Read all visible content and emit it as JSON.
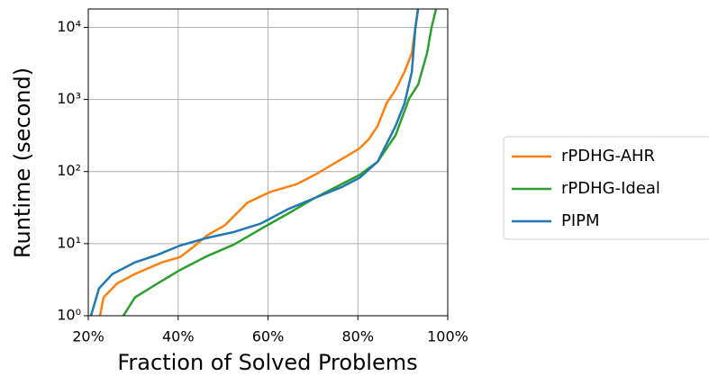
{
  "chart_data": {
    "type": "line",
    "xlabel": "Fraction of Solved Problems",
    "ylabel": "Runtime (second)",
    "xlim": [
      20,
      100
    ],
    "xticks": [
      {
        "value": 20,
        "label": "20%"
      },
      {
        "value": 40,
        "label": "40%"
      },
      {
        "value": 60,
        "label": "60%"
      },
      {
        "value": 80,
        "label": "80%"
      },
      {
        "value": 100,
        "label": "100%"
      }
    ],
    "ylim": [
      1,
      18000
    ],
    "yticks": [
      {
        "value": 1,
        "label": "10⁰"
      },
      {
        "value": 10,
        "label": "10¹"
      },
      {
        "value": 100,
        "label": "10²"
      },
      {
        "value": 1000,
        "label": "10³"
      },
      {
        "value": 10000,
        "label": "10⁴"
      }
    ],
    "log_y": true,
    "grid": true,
    "legend": "right",
    "series": [
      {
        "name": "rPDHG-AHR",
        "color": "#ff7f0e",
        "x": [
          22.6,
          23.4,
          26.4,
          30.4,
          36.4,
          40.4,
          43.4,
          46.4,
          50.4,
          55.4,
          60.4,
          66.4,
          70.4,
          75.4,
          80.4,
          82.4,
          84.4,
          86.4,
          88.4,
          90.4,
          92,
          93.4
        ],
        "values": [
          1,
          1.8,
          2.8,
          3.8,
          5.5,
          6.5,
          9,
          13,
          18,
          37,
          52,
          67,
          90,
          137,
          210,
          280,
          430,
          890,
          1370,
          2440,
          4400,
          18000
        ]
      },
      {
        "name": "rPDHG-Ideal",
        "color": "#2ca02c",
        "x": [
          27.8,
          30.4,
          35.4,
          40.4,
          46.4,
          52.4,
          58.4,
          64.4,
          70.4,
          76.4,
          80.4,
          84.4,
          88.4,
          91.4,
          93.4,
          95.4,
          96.4,
          97.4
        ],
        "values": [
          1,
          1.8,
          2.8,
          4.3,
          6.7,
          9.7,
          16,
          26,
          43,
          67,
          90,
          137,
          320,
          1030,
          1600,
          4400,
          10000,
          18000
        ]
      },
      {
        "name": "PIPM",
        "color": "#1f77b4",
        "x": [
          20.6,
          22.4,
          25.4,
          30.4,
          35.4,
          40.4,
          46.4,
          52.4,
          58.4,
          64.4,
          70.4,
          76.4,
          80.4,
          84.4,
          88.4,
          90.4,
          92,
          92.8,
          93.4
        ],
        "values": [
          1,
          2.4,
          3.8,
          5.5,
          7,
          9.4,
          12,
          14.5,
          19,
          30,
          43,
          61,
          82,
          137,
          430,
          890,
          2400,
          10000,
          18000
        ]
      }
    ]
  }
}
